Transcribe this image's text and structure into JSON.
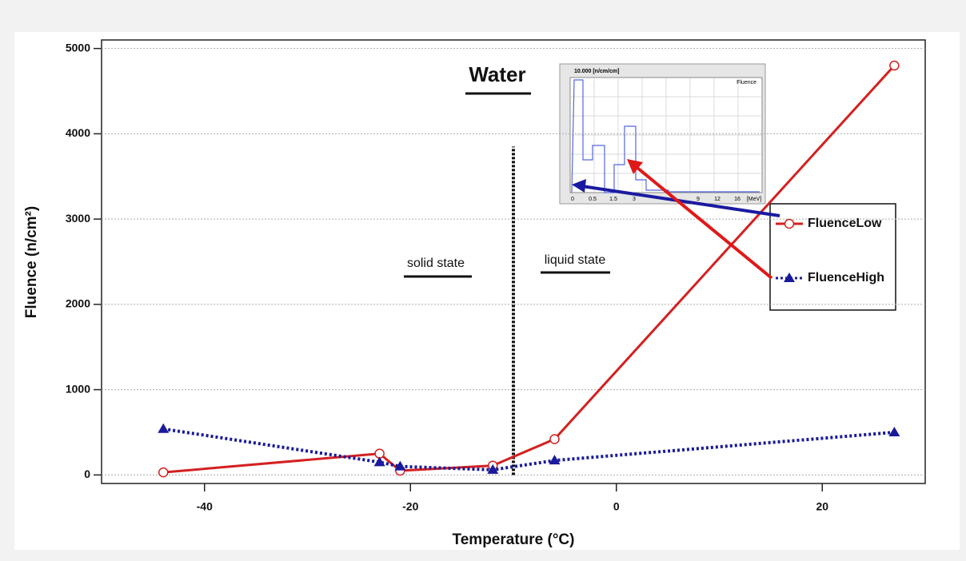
{
  "chart_data": {
    "type": "line",
    "title": "Water",
    "xlabel": "Temperature (°C)",
    "ylabel": "Fluence (n/cm²)",
    "annotations": [
      "solid state",
      "liquid state"
    ],
    "x": [
      -44,
      -23,
      -21,
      -12,
      -6,
      27
    ],
    "series": [
      {
        "name": "FluenceLow",
        "color": "#d42020",
        "marker": "circle",
        "dash": "solid",
        "values": [
          30,
          250,
          50,
          110,
          420,
          4800
        ]
      },
      {
        "name": "FluenceHigh",
        "color": "#1a1a9a",
        "marker": "triangle",
        "dash": "dotted",
        "values": [
          540,
          150,
          100,
          60,
          170,
          500
        ]
      }
    ],
    "xlim": [
      -50,
      30
    ],
    "xticks": [
      -40,
      -20,
      0,
      20
    ],
    "ylim": [
      -100,
      5100
    ],
    "yticks": [
      0,
      1000,
      2000,
      3000,
      4000,
      5000
    ],
    "grid": true,
    "vline": {
      "x": -10,
      "y": [
        0,
        3850
      ]
    },
    "inset": {
      "header": "10.000 [n/cm/cm]",
      "label": "Fluence",
      "ticks": [
        "0",
        "0.5",
        "1.5",
        "3",
        "9",
        "12",
        "16",
        "[MeV]"
      ]
    }
  }
}
